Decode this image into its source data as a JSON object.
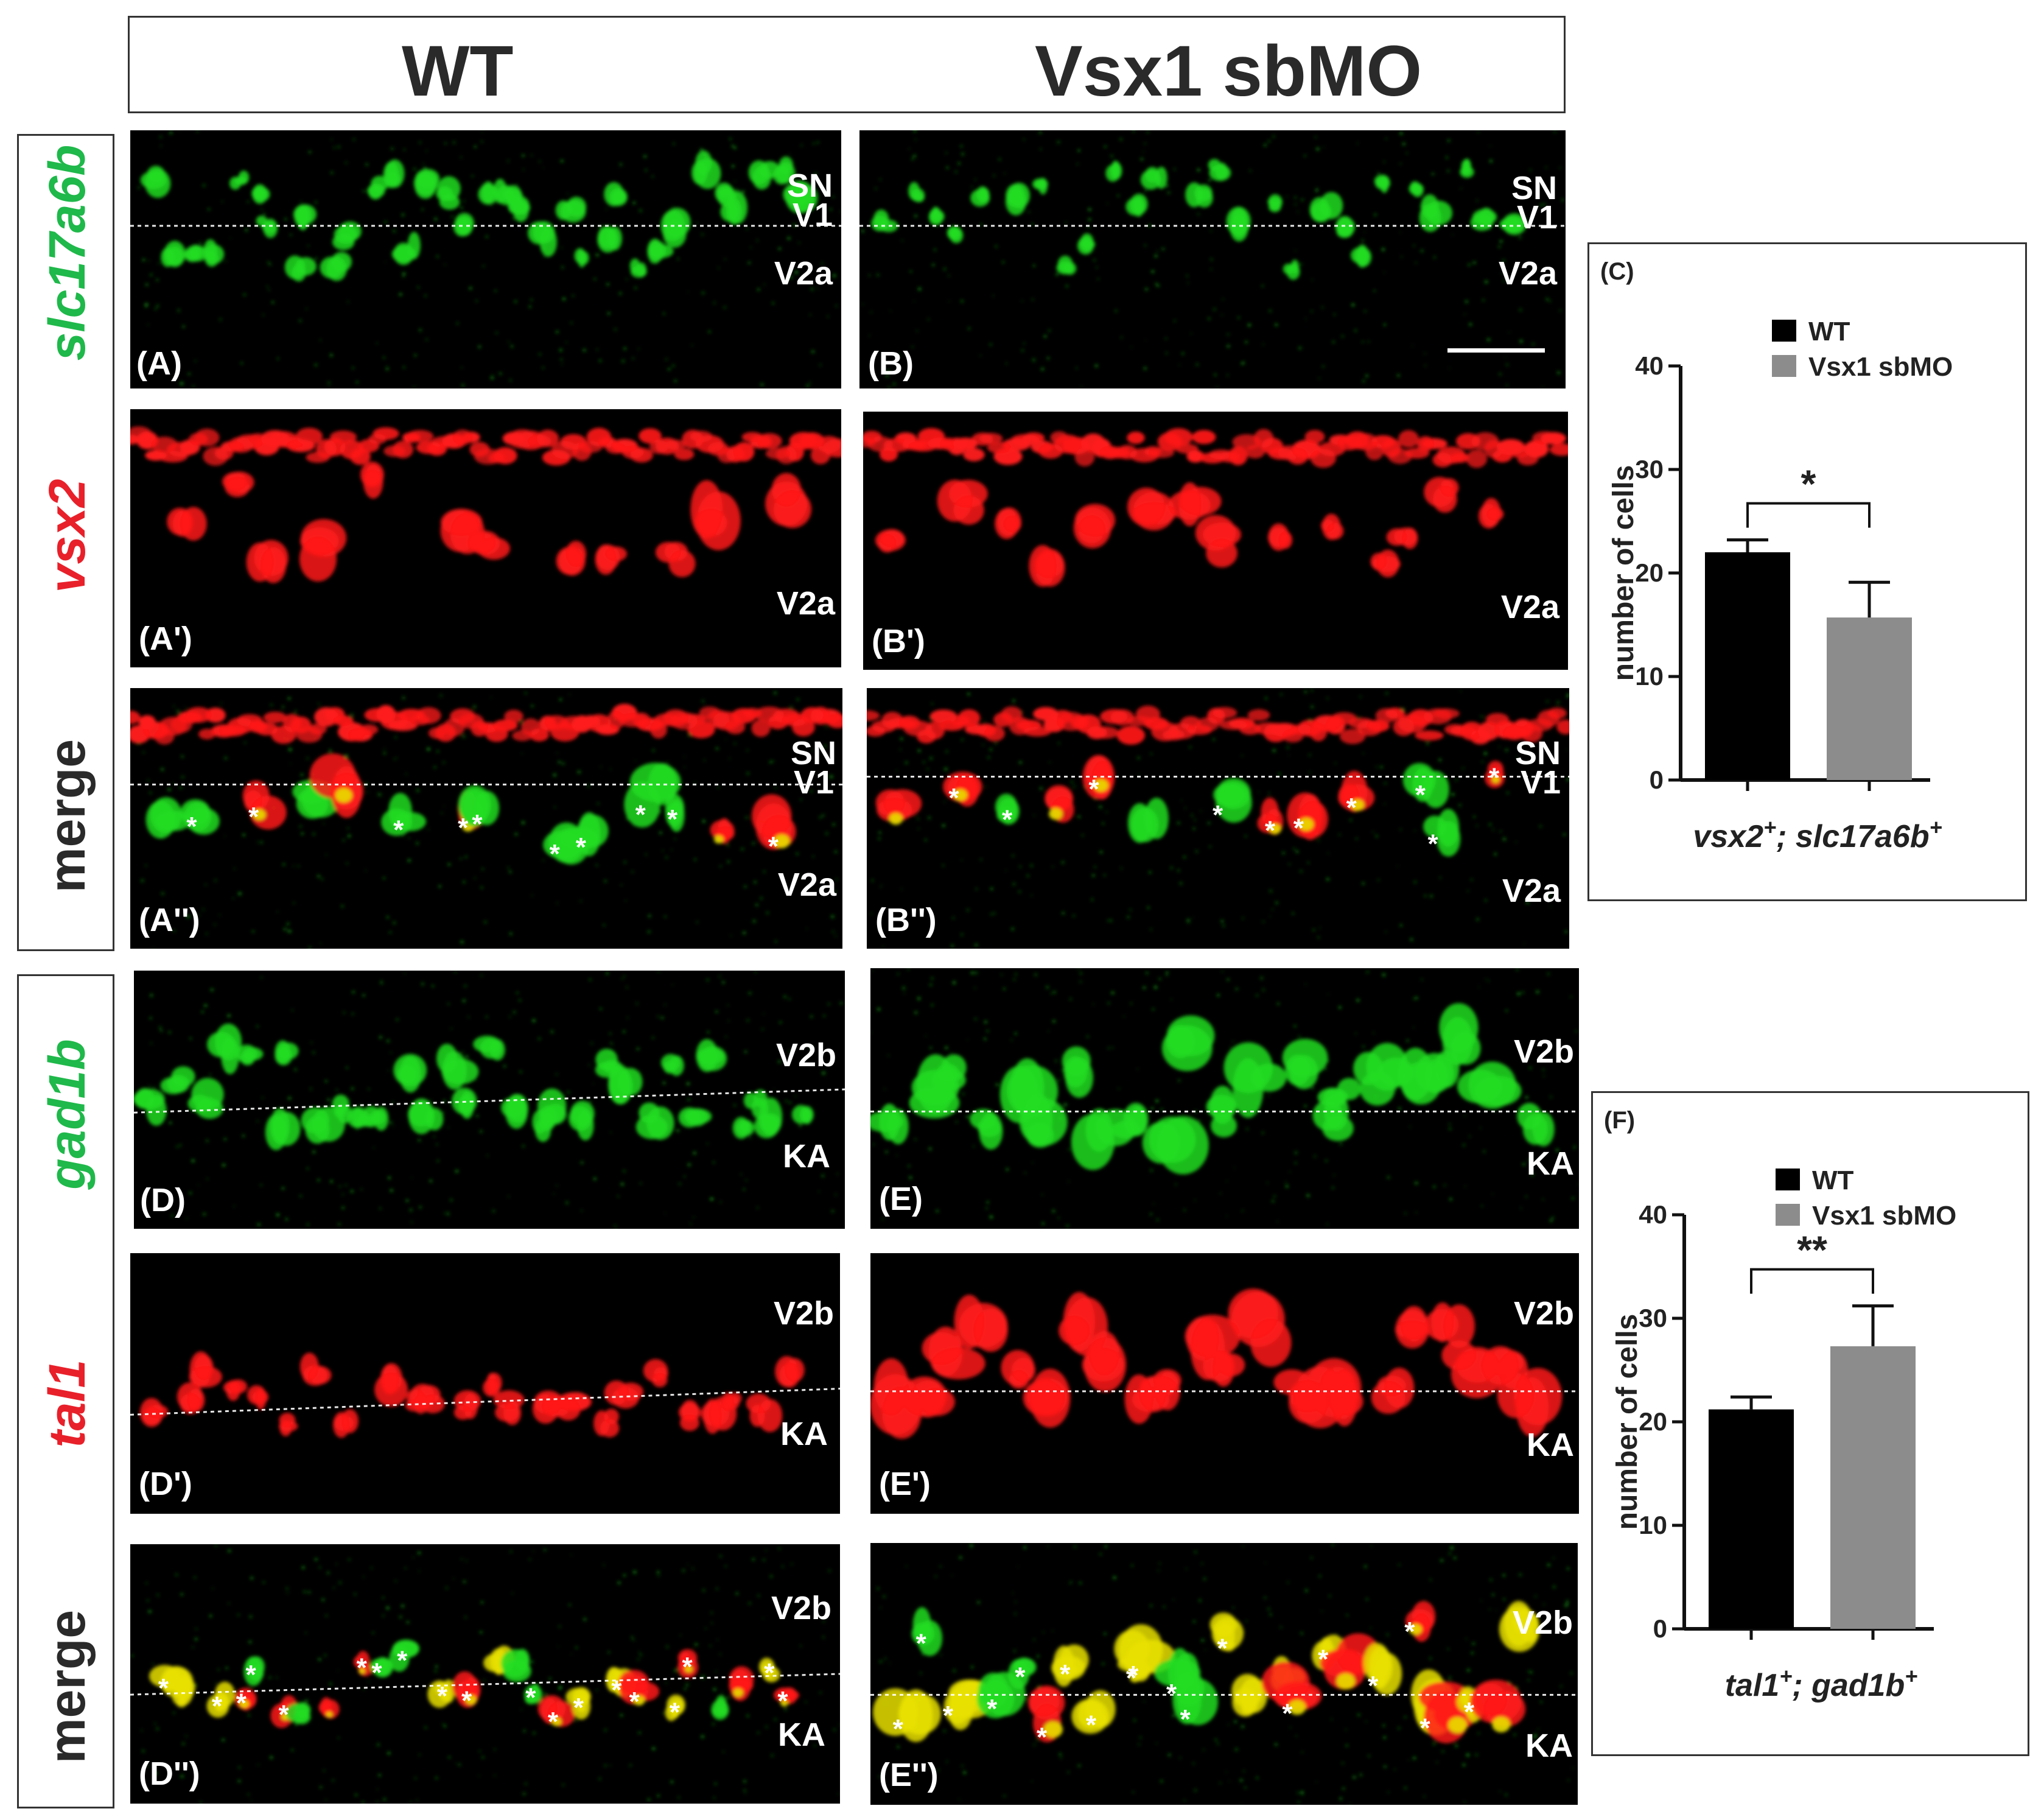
{
  "header": {
    "col_left": "WT",
    "col_right": "Vsx1 sbMO"
  },
  "row_labels": {
    "slc17a6b": "slc17a6b",
    "vsx2": "vsx2",
    "merge_top": "merge",
    "gad1b": "gad1b",
    "tal1": "tal1",
    "merge_bottom": "merge"
  },
  "panels": {
    "A": {
      "label": "(A)",
      "annotations": [
        "SN",
        "V1",
        "V2a"
      ]
    },
    "B": {
      "label": "(B)",
      "annotations": [
        "SN",
        "V1",
        "V2a"
      ]
    },
    "A1": {
      "label": "(A')",
      "annotations": [
        "V2a"
      ]
    },
    "B1": {
      "label": "(B')",
      "annotations": [
        "V2a"
      ]
    },
    "A2": {
      "label": "(A'')",
      "annotations": [
        "SN",
        "V1",
        "V2a"
      ]
    },
    "B2": {
      "label": "(B'')",
      "annotations": [
        "SN",
        "V1",
        "V2a"
      ]
    },
    "D": {
      "label": "(D)",
      "annotations": [
        "V2b",
        "KA"
      ]
    },
    "E": {
      "label": "(E)",
      "annotations": [
        "V2b",
        "KA"
      ]
    },
    "D1": {
      "label": "(D')",
      "annotations": [
        "V2b",
        "KA"
      ]
    },
    "E1": {
      "label": "(E')",
      "annotations": [
        "V2b",
        "KA"
      ]
    },
    "D2": {
      "label": "(D'')",
      "annotations": [
        "V2b",
        "KA"
      ]
    },
    "E2": {
      "label": "(E'')",
      "annotations": [
        "V2b",
        "KA"
      ]
    }
  },
  "colors": {
    "green_channel": "#22dd22",
    "red_channel": "#ff1a1a",
    "merge_yellow": "#e8e000",
    "wt_bar": "#000000",
    "sbmo_bar": "#8c8c8c"
  },
  "chart_data": [
    {
      "panel_label": "(C)",
      "type": "bar",
      "categories": [
        "WT",
        "Vsx1 sbMO"
      ],
      "values": [
        22,
        15.7
      ],
      "errors": [
        1.2,
        3.4
      ],
      "ylabel": "number of cells",
      "xlabel_base": "vsx2",
      "xlabel_sep": ";",
      "xlabel_second": "slc17a6b",
      "xlabel_sup": "+",
      "yticks": [
        0,
        10,
        20,
        30,
        40
      ],
      "ylim": [
        0,
        40
      ],
      "legend": [
        "WT",
        "Vsx1 sbMO"
      ],
      "significance": "*"
    },
    {
      "panel_label": "(F)",
      "type": "bar",
      "categories": [
        "WT",
        "Vsx1 sbMO"
      ],
      "values": [
        21.2,
        27.3
      ],
      "errors": [
        1.2,
        3.9
      ],
      "ylabel": "number of cells",
      "xlabel_base": "tal1",
      "xlabel_sep": ";",
      "xlabel_second": "gad1b",
      "xlabel_sup": "+",
      "yticks": [
        0,
        10,
        20,
        30,
        40
      ],
      "ylim": [
        0,
        40
      ],
      "legend": [
        "WT",
        "Vsx1 sbMO"
      ],
      "significance": "**"
    }
  ]
}
